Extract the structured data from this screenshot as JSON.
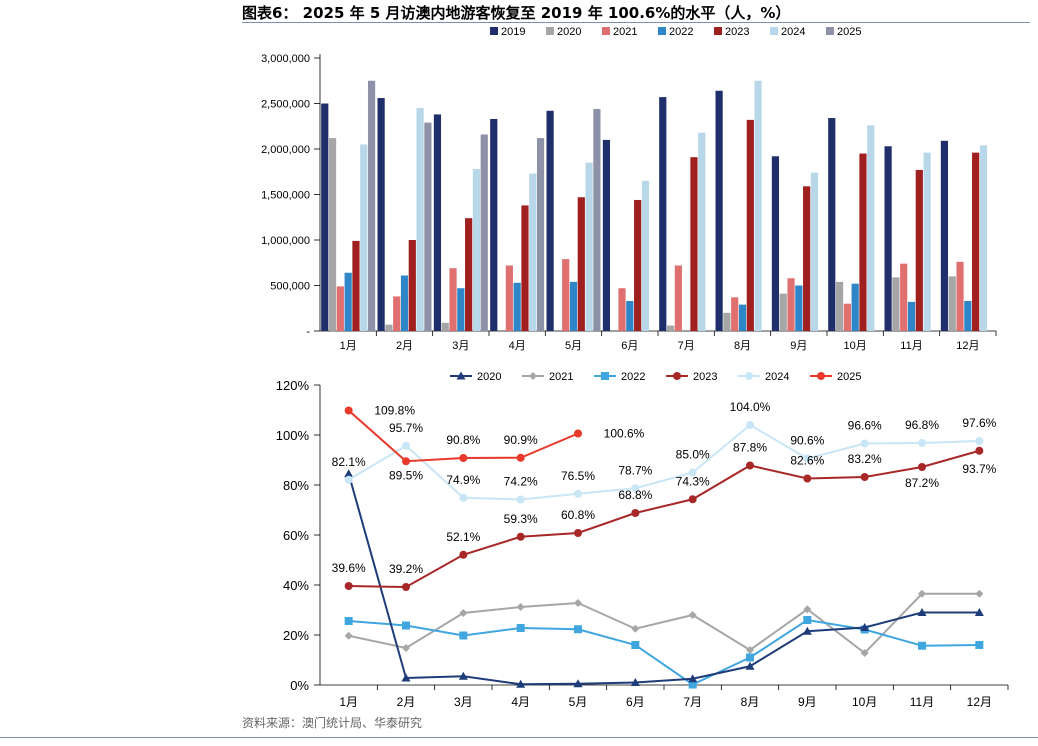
{
  "title": "图表6： 2025 年 5 月访澳内地游客恢复至 2019 年 100.6%的水平（人，%）",
  "source": "资料来源：澳门统计局、华泰研究",
  "chart_data": [
    {
      "type": "bar",
      "categories": [
        "1月",
        "2月",
        "3月",
        "4月",
        "5月",
        "6月",
        "7月",
        "8月",
        "9月",
        "10月",
        "11月",
        "12月"
      ],
      "yticks": [
        "3,000,000",
        "2,500,000",
        "2,000,000",
        "1,500,000",
        "1,000,000",
        "500,000",
        "-"
      ],
      "ylim": [
        0,
        3000000
      ],
      "legend_position": "top",
      "series": [
        {
          "name": "2019",
          "color": "#1f2f6b",
          "values": [
            2500000,
            2560000,
            2380000,
            2330000,
            2420000,
            2100000,
            2570000,
            2640000,
            1920000,
            2340000,
            2030000,
            2090000
          ]
        },
        {
          "name": "2020",
          "color": "#a6a6a6",
          "values": [
            2120000,
            70000,
            90000,
            null,
            null,
            null,
            60000,
            200000,
            410000,
            540000,
            590000,
            600000
          ]
        },
        {
          "name": "2021",
          "color": "#e07070",
          "values": [
            490000,
            380000,
            690000,
            720000,
            790000,
            470000,
            720000,
            370000,
            580000,
            300000,
            740000,
            760000
          ]
        },
        {
          "name": "2022",
          "color": "#2e86c8",
          "values": [
            640000,
            610000,
            470000,
            530000,
            540000,
            330000,
            null,
            290000,
            500000,
            520000,
            320000,
            330000
          ]
        },
        {
          "name": "2023",
          "color": "#a02020",
          "values": [
            990000,
            1000000,
            1240000,
            1380000,
            1470000,
            1440000,
            1910000,
            2320000,
            1590000,
            1950000,
            1770000,
            1960000
          ]
        },
        {
          "name": "2024",
          "color": "#b8d8ea",
          "values": [
            2050000,
            2450000,
            1780000,
            1730000,
            1850000,
            1650000,
            2180000,
            2750000,
            1740000,
            2260000,
            1960000,
            2040000
          ]
        },
        {
          "name": "2025",
          "color": "#8e92a8",
          "values": [
            2750000,
            2290000,
            2160000,
            2120000,
            2440000,
            null,
            null,
            null,
            null,
            null,
            null,
            null
          ]
        }
      ]
    },
    {
      "type": "line",
      "categories": [
        "1月",
        "2月",
        "3月",
        "4月",
        "5月",
        "6月",
        "7月",
        "8月",
        "9月",
        "10月",
        "11月",
        "12月"
      ],
      "yticks": [
        "120%",
        "100%",
        "80%",
        "60%",
        "40%",
        "20%",
        "0%"
      ],
      "ylim": [
        0,
        120
      ],
      "legend_position": "top",
      "series": [
        {
          "name": "2020",
          "color": "#1f3c7a",
          "marker": "triangle",
          "values": [
            84.5,
            2.8,
            3.5,
            0.3,
            0.5,
            1.0,
            2.5,
            7.5,
            21.5,
            23.0,
            29.0,
            29.0
          ],
          "labels": []
        },
        {
          "name": "2021",
          "color": "#a6a6a6",
          "marker": "diamond",
          "values": [
            19.7,
            14.8,
            28.8,
            31.2,
            32.8,
            22.5,
            28.0,
            14.0,
            30.3,
            12.8,
            36.5,
            36.5
          ],
          "labels": []
        },
        {
          "name": "2022",
          "color": "#3fa6e0",
          "marker": "square",
          "values": [
            25.6,
            23.8,
            19.8,
            22.8,
            22.3,
            16.0,
            0.2,
            11.0,
            26.0,
            22.2,
            15.7,
            16.0
          ],
          "labels": []
        },
        {
          "name": "2023",
          "color": "#a82828",
          "marker": "circle",
          "values": [
            39.6,
            39.2,
            52.1,
            59.3,
            60.8,
            68.8,
            74.3,
            87.8,
            82.6,
            83.2,
            87.2,
            93.7
          ],
          "labels": [
            "39.6%",
            "39.2%",
            "52.1%",
            "59.3%",
            "60.8%",
            "68.8%",
            "74.3%",
            "87.8%",
            "82.6%",
            "83.2%",
            "87.2%",
            "93.7%"
          ]
        },
        {
          "name": "2024",
          "color": "#c8e6f5",
          "marker": "circle",
          "values": [
            82.1,
            95.7,
            74.9,
            74.2,
            76.5,
            78.7,
            85.0,
            104.0,
            90.6,
            96.6,
            96.8,
            97.6
          ],
          "labels": [
            "82.1%",
            "95.7%",
            "74.9%",
            "74.2%",
            "76.5%",
            "78.7%",
            "85.0%",
            "104.0%",
            "90.6%",
            "96.6%",
            "96.8%",
            "97.6%"
          ]
        },
        {
          "name": "2025",
          "color": "#e8392a",
          "marker": "circle",
          "values": [
            109.8,
            89.5,
            90.8,
            90.9,
            100.6,
            null,
            null,
            null,
            null,
            null,
            null,
            null
          ],
          "labels": [
            "109.8%",
            "89.5%",
            "90.8%",
            "90.9%",
            "100.6%"
          ]
        }
      ]
    }
  ]
}
